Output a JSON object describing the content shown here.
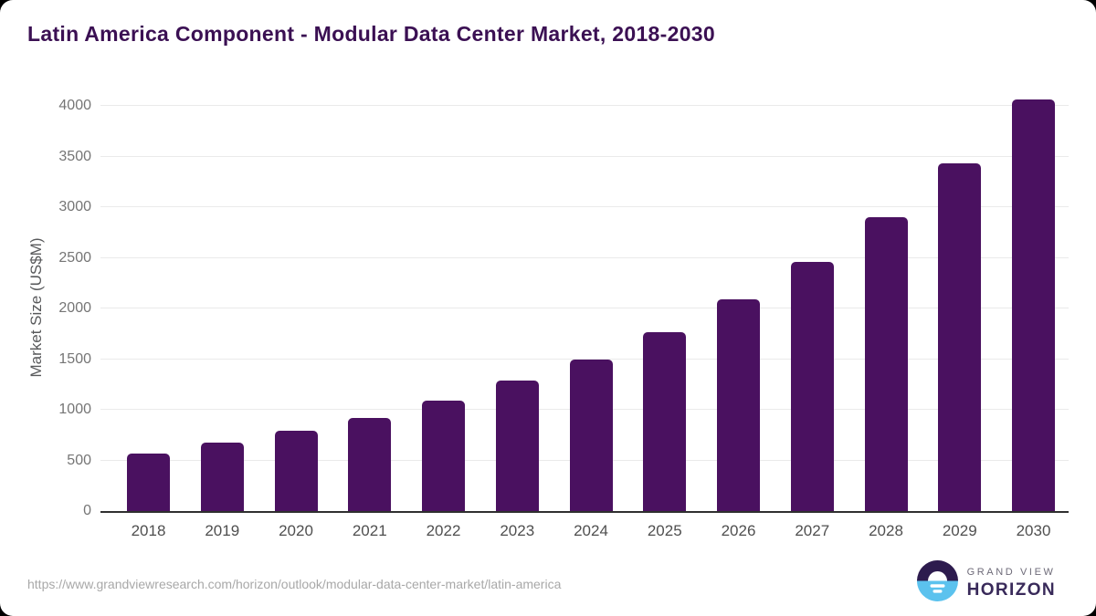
{
  "title": "Latin America Component - Modular Data Center Market, 2018-2030",
  "chart_data": {
    "type": "bar",
    "title": "Latin America Component - Modular Data Center Market, 2018-2030",
    "categories": [
      "2018",
      "2019",
      "2020",
      "2021",
      "2022",
      "2023",
      "2024",
      "2025",
      "2026",
      "2027",
      "2028",
      "2029",
      "2030"
    ],
    "values": [
      570,
      675,
      795,
      920,
      1090,
      1285,
      1500,
      1770,
      2090,
      2460,
      2900,
      3430,
      4060
    ],
    "series_name": "Market Size",
    "xlabel": "",
    "ylabel": "Market Size (US$M)",
    "ylim": [
      0,
      4000
    ],
    "yticks": [
      0,
      500,
      1000,
      1500,
      2000,
      2500,
      3000,
      3500,
      4000
    ],
    "grid": true,
    "legend": false,
    "value_unit": "US$M"
  },
  "footer": {
    "source_url": "https://www.grandviewresearch.com/horizon/outlook/modular-data-center-market/latin-america",
    "logo": {
      "brand_top": "GRAND VIEW",
      "brand_bottom": "HORIZON"
    }
  },
  "colors": {
    "title": "#3b1053",
    "bar": "#4a1160",
    "gridline": "#eaeaea",
    "axis_line": "#2f2f2f",
    "y_tick": "#757575",
    "x_tick": "#4f4f4f",
    "axis_title": "#58595b",
    "url_text": "#a8a8a8",
    "logo_top_half": "#2d1b4e",
    "logo_bottom_half": "#5bc2ee",
    "brand_top_text": "#6d6a78",
    "brand_bottom_text": "#392a5a"
  }
}
